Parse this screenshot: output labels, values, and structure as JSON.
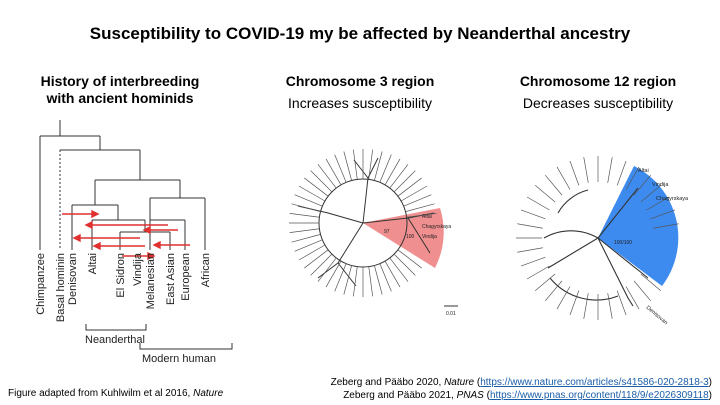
{
  "title": "Susceptibility to COVID-19 my be affected by Neanderthal ancestry",
  "left_panel": {
    "title_line1": "History of interbreeding",
    "title_line2": "with ancient hominids",
    "taxa": [
      "Chimpanzee",
      "Basal hominin",
      "Denisovan",
      "Altai",
      "El Sidron",
      "Vindija",
      "Melanesian",
      "East Asian",
      "European",
      "African"
    ],
    "group_neanderthal": "Neanderthal",
    "group_modern": "Modern human"
  },
  "middle_panel": {
    "title": "Chromosome 3 region",
    "subtitle": "Increases susceptibility",
    "highlight_labels": [
      "Altai",
      "Chagyrskaya",
      "Vindija"
    ],
    "bootstrap_outer": "97",
    "bootstrap_inner": "100",
    "scale": "0.01",
    "highlight_color": "#f08f8f"
  },
  "right_panel": {
    "title": "Chromosome 12 region",
    "subtitle": "Decreases susceptibility",
    "highlight_labels": [
      "Altai",
      "Vindija",
      "Chagyrskaya"
    ],
    "bootstrap": "100/100",
    "outgroup": "Denisovan",
    "highlight_color": "#3d8bef"
  },
  "captions": {
    "left_prefix": "Figure adapted from Kuhlwilm et al 2016, ",
    "left_journal": "Nature",
    "ref1_prefix": "Zeberg and Pääbo 2020, ",
    "ref1_journal": "Nature",
    "ref1_open": " (",
    "ref1_url": "https://www.nature.com/articles/s41586-020-2818-3",
    "ref1_close": ")",
    "ref2_prefix": "Zeberg and Pääbo 2021, ",
    "ref2_journal": "PNAS",
    "ref2_open": " (",
    "ref2_url": "https://www.pnas.org/content/118/9/e2026309118",
    "ref2_close": ")"
  }
}
